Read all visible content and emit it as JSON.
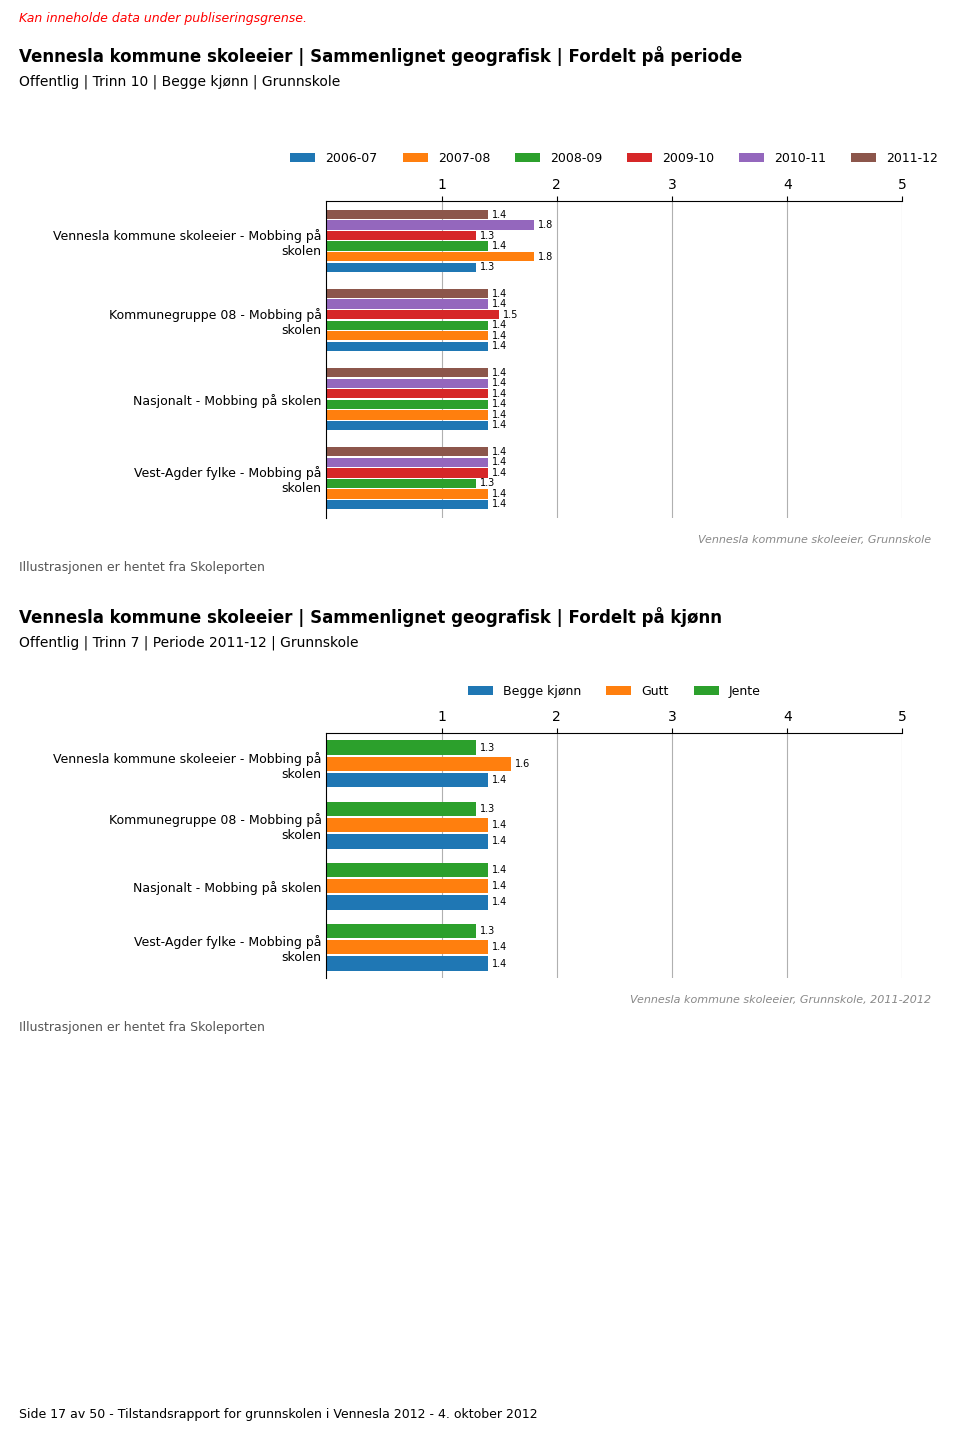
{
  "chart_data": [
    {
      "type": "bar",
      "orientation": "horizontal",
      "title": "Vennesla kommune skoleeier | Sammenlignet geografisk | Fordelt på periode",
      "subtitle": "Offentlig | Trinn 10 | Begge kjønn | Grunnskole",
      "categories": [
        "Vennesla kommune skoleeier - Mobbing på\nskolen",
        "Kommunegruppe 08 - Mobbing på\nskolen",
        "Nasjonalt - Mobbing på skolen",
        "Vest-Agder fylke - Mobbing på\nskolen"
      ],
      "series": [
        {
          "name": "2006-07",
          "values": [
            1.3,
            1.4,
            1.4,
            1.4
          ]
        },
        {
          "name": "2007-08",
          "values": [
            1.8,
            1.4,
            1.4,
            1.4
          ]
        },
        {
          "name": "2008-09",
          "values": [
            1.4,
            1.4,
            1.4,
            1.3
          ]
        },
        {
          "name": "2009-10",
          "values": [
            1.3,
            1.5,
            1.4,
            1.4
          ]
        },
        {
          "name": "2010-11",
          "values": [
            1.8,
            1.4,
            1.4,
            1.4
          ]
        },
        {
          "name": "2011-12",
          "values": [
            1.4,
            1.4,
            1.4,
            1.4
          ]
        }
      ],
      "xlim": [
        0,
        5
      ],
      "xticks": [
        1,
        2,
        3,
        4,
        5
      ],
      "grid": true,
      "legend": "lower center",
      "data_labels": true,
      "annotations": [
        "Kan inneholde data under publiseringsgrense.",
        "Vennesla kommune skoleeier, Grunnskole",
        "Illustrasjonen er hentet fra Skoleporten"
      ]
    },
    {
      "type": "bar",
      "orientation": "horizontal",
      "title": "Vennesla kommune skoleeier | Sammenlignet geografisk | Fordelt på kjønn",
      "subtitle": "Offentlig | Trinn 7 | Periode 2011-12 | Grunnskole",
      "categories": [
        "Vennesla kommune skoleeier - Mobbing på\nskolen",
        "Kommunegruppe 08 - Mobbing på\nskolen",
        "Nasjonalt - Mobbing på skolen",
        "Vest-Agder fylke - Mobbing på\nskolen"
      ],
      "series": [
        {
          "name": "Begge kjønn",
          "values": [
            1.4,
            1.4,
            1.4,
            1.4
          ]
        },
        {
          "name": "Gutt",
          "values": [
            1.6,
            1.4,
            1.4,
            1.4
          ]
        },
        {
          "name": "Jente",
          "values": [
            1.3,
            1.3,
            1.4,
            1.3
          ]
        }
      ],
      "xlim": [
        0,
        5
      ],
      "xticks": [
        1,
        2,
        3,
        4,
        5
      ],
      "grid": true,
      "legend": "lower center",
      "data_labels": true,
      "annotations": [
        "Vennesla kommune skoleeier, Grunnskole, 2011-2012",
        "Illustrasjonen er hentet fra Skoleporten",
        "Side 17 av 50 - Tilstandsrapport for grunnskolen i Vennesla 2012 - 4. oktober 2012"
      ]
    }
  ]
}
